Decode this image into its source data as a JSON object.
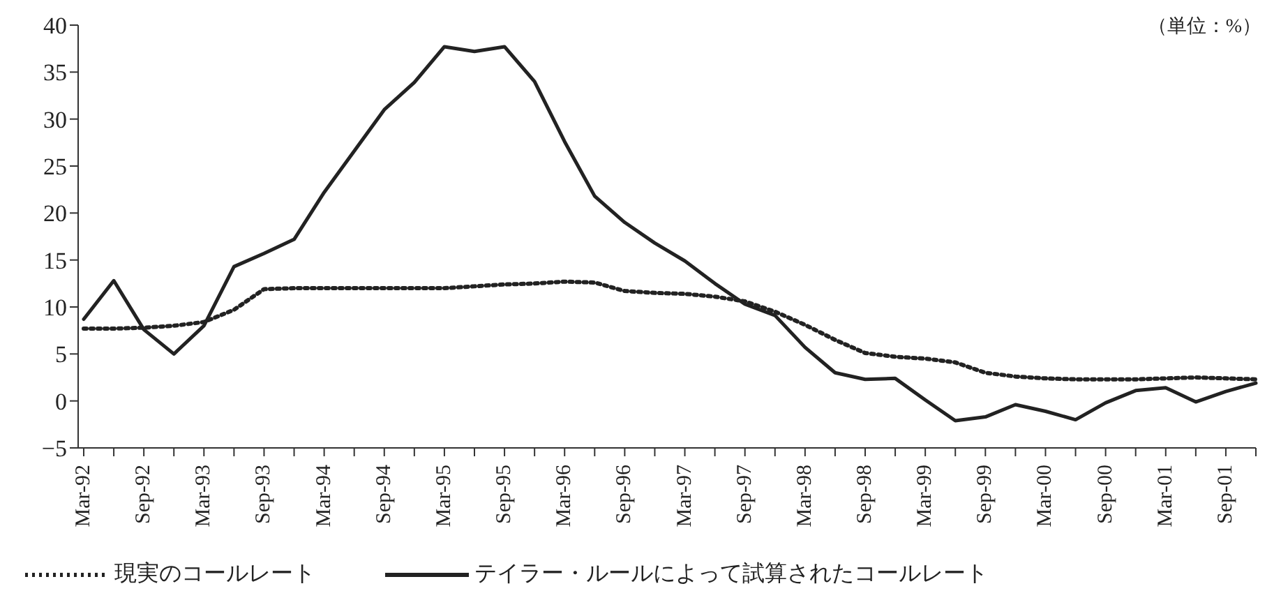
{
  "chart_data": {
    "type": "line",
    "annotations": [
      "（単位：%）"
    ],
    "categories": [
      "Mar-92",
      null,
      "Sep-92",
      null,
      "Mar-93",
      null,
      "Sep-93",
      null,
      "Mar-94",
      null,
      "Sep-94",
      null,
      "Mar-95",
      null,
      "Sep-95",
      null,
      "Mar-96",
      null,
      "Sep-96",
      null,
      "Mar-97",
      null,
      "Sep-97",
      null,
      "Mar-98",
      null,
      "Sep-98",
      null,
      "Mar-99",
      null,
      "Sep-99",
      null,
      "Mar-00",
      null,
      "Sep-00",
      null,
      "Mar-01",
      null,
      "Sep-01",
      null
    ],
    "series": [
      {
        "name": "現実のコールレート",
        "color": "#222222",
        "line_style": "dotted",
        "values": [
          7.7,
          7.7,
          7.8,
          8.0,
          8.4,
          9.7,
          11.9,
          12.0,
          12.0,
          12.0,
          12.0,
          12.0,
          12.0,
          12.2,
          12.4,
          12.5,
          12.7,
          12.6,
          11.7,
          11.5,
          11.4,
          11.1,
          10.6,
          9.5,
          8.1,
          6.5,
          5.1,
          4.7,
          4.5,
          4.1,
          3.0,
          2.6,
          2.4,
          2.3,
          2.3,
          2.3,
          2.4,
          2.5,
          2.4,
          2.3
        ]
      },
      {
        "name": "テイラー・ルールによって試算されたコールレート",
        "color": "#222222",
        "line_style": "solid",
        "values": [
          8.7,
          12.8,
          7.6,
          5.0,
          8.0,
          14.3,
          15.7,
          17.2,
          22.2,
          26.6,
          31.0,
          33.9,
          37.7,
          37.2,
          37.7,
          34.0,
          27.6,
          21.8,
          19.0,
          16.8,
          14.9,
          12.5,
          10.3,
          9.1,
          5.7,
          3.0,
          2.3,
          2.4,
          0.1,
          -2.1,
          -1.7,
          -0.4,
          -1.1,
          -2.0,
          -0.2,
          1.1,
          1.4,
          -0.1,
          1.0,
          1.9
        ]
      }
    ],
    "ylim": [
      -5,
      40
    ],
    "yticks": [
      {
        "value": -5,
        "label": "−5"
      },
      0,
      5,
      10,
      15,
      20,
      25,
      30,
      35,
      40
    ],
    "grid": false,
    "legend": "bottom",
    "marker": "none"
  }
}
